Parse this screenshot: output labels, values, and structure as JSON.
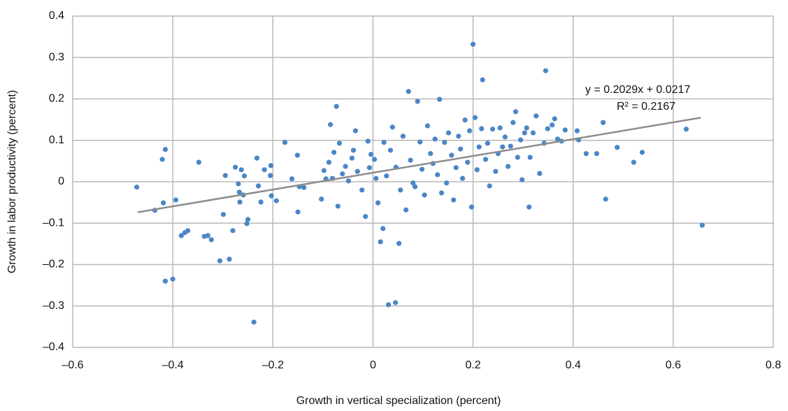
{
  "chart_data": {
    "type": "scatter",
    "xlabel": "Growth in vertical specialization (percent)",
    "ylabel": "Growth in labor productivity (percent)",
    "color": "#4a86c6",
    "grid": true,
    "xlim": [
      -0.6,
      0.8
    ],
    "ylim": [
      -0.4,
      0.4
    ],
    "xticks": [
      {
        "value": -0.6,
        "label": "–0.6"
      },
      {
        "value": -0.4,
        "label": "–0.4"
      },
      {
        "value": -0.2,
        "label": "–0.2"
      },
      0,
      0.2,
      0.4,
      0.6,
      0.8
    ],
    "yticks": [
      {
        "value": -0.4,
        "label": "–0.4"
      },
      {
        "value": -0.3,
        "label": "–0.3"
      },
      {
        "value": -0.2,
        "label": "–0.2"
      },
      {
        "value": -0.1,
        "label": "–0.1"
      },
      0,
      0.1,
      0.2,
      0.3,
      0.4
    ],
    "x": [
      -0.472,
      -0.436,
      -0.421,
      -0.415,
      -0.419,
      -0.415,
      -0.4,
      -0.394,
      -0.383,
      -0.376,
      -0.37,
      -0.348,
      -0.337,
      -0.33,
      -0.323,
      -0.306,
      -0.287,
      -0.299,
      -0.295,
      -0.28,
      -0.275,
      -0.269,
      -0.267,
      -0.266,
      -0.263,
      -0.257,
      -0.252,
      -0.25,
      -0.259,
      -0.232,
      -0.229,
      -0.224,
      -0.217,
      -0.205,
      -0.204,
      -0.203,
      -0.238,
      -0.193,
      -0.176,
      -0.162,
      -0.151,
      -0.147,
      -0.15,
      -0.138,
      -0.103,
      -0.098,
      -0.094,
      -0.088,
      -0.085,
      -0.081,
      -0.078,
      -0.073,
      -0.07,
      -0.067,
      -0.061,
      -0.055,
      -0.049,
      -0.042,
      -0.039,
      -0.035,
      -0.031,
      -0.022,
      -0.015,
      -0.01,
      -0.007,
      -0.004,
      0.003,
      0.006,
      0.01,
      0.015,
      0.02,
      0.022,
      0.027,
      0.031,
      0.045,
      0.035,
      0.039,
      0.046,
      0.052,
      0.055,
      0.06,
      0.066,
      0.071,
      0.075,
      0.08,
      0.084,
      0.089,
      0.094,
      0.098,
      0.103,
      0.109,
      0.115,
      0.12,
      0.124,
      0.129,
      0.133,
      0.137,
      0.143,
      0.147,
      0.151,
      0.157,
      0.161,
      0.166,
      0.171,
      0.175,
      0.179,
      0.184,
      0.189,
      0.193,
      0.197,
      0.2,
      0.204,
      0.208,
      0.212,
      0.217,
      0.219,
      0.225,
      0.229,
      0.233,
      0.239,
      0.245,
      0.25,
      0.254,
      0.259,
      0.264,
      0.27,
      0.275,
      0.28,
      0.285,
      0.289,
      0.295,
      0.298,
      0.303,
      0.307,
      0.314,
      0.32,
      0.326,
      0.333,
      0.342,
      0.349,
      0.358,
      0.363,
      0.369,
      0.377,
      0.384,
      0.345,
      0.411,
      0.426,
      0.447,
      0.488,
      0.465,
      0.538,
      0.521,
      0.626,
      0.658,
      0.46,
      0.408,
      0.312
    ],
    "values": [
      -0.013,
      -0.069,
      0.054,
      0.078,
      -0.051,
      -0.24,
      -0.235,
      -0.044,
      -0.13,
      -0.123,
      -0.118,
      0.047,
      -0.132,
      -0.13,
      -0.14,
      -0.191,
      -0.187,
      -0.079,
      0.015,
      -0.118,
      0.035,
      -0.005,
      -0.025,
      -0.049,
      0.029,
      0.014,
      -0.101,
      -0.091,
      -0.032,
      0.057,
      -0.01,
      -0.049,
      0.029,
      0.015,
      0.039,
      -0.034,
      -0.339,
      -0.046,
      0.095,
      0.007,
      0.064,
      -0.012,
      -0.073,
      -0.014,
      -0.042,
      0.027,
      0.007,
      0.047,
      0.138,
      0.008,
      0.071,
      0.182,
      -0.059,
      0.093,
      0.019,
      0.037,
      0.002,
      0.057,
      0.076,
      0.123,
      0.025,
      -0.02,
      -0.084,
      0.098,
      0.034,
      0.066,
      0.054,
      0.008,
      -0.051,
      -0.145,
      -0.113,
      0.095,
      0.014,
      -0.297,
      -0.292,
      0.076,
      0.132,
      0.035,
      -0.149,
      -0.02,
      0.11,
      -0.068,
      0.218,
      0.052,
      -0.003,
      -0.012,
      0.194,
      0.096,
      0.03,
      -0.032,
      0.135,
      0.068,
      0.044,
      0.103,
      0.017,
      0.199,
      -0.027,
      0.095,
      -0.003,
      0.118,
      0.064,
      -0.044,
      0.034,
      0.11,
      0.079,
      0.008,
      0.149,
      0.047,
      0.123,
      -0.061,
      0.332,
      0.155,
      0.029,
      0.084,
      0.128,
      0.246,
      0.054,
      0.093,
      -0.01,
      0.127,
      0.025,
      0.068,
      0.13,
      0.084,
      0.108,
      0.037,
      0.086,
      0.143,
      0.169,
      0.059,
      0.101,
      0.005,
      0.118,
      0.13,
      0.059,
      0.118,
      0.159,
      0.02,
      0.093,
      0.128,
      0.137,
      0.152,
      0.103,
      0.098,
      0.125,
      0.268,
      0.101,
      0.068,
      0.068,
      0.083,
      -0.042,
      0.071,
      0.047,
      0.127,
      -0.105,
      0.143,
      0.123,
      -0.061
    ],
    "trendline": {
      "slope": 0.2029,
      "intercept": 0.0217,
      "xlim": [
        -0.47,
        0.655
      ],
      "color": "#8c8c8c",
      "equation": "y = 0.2029x + 0.0217",
      "r2_label": "R² = 0.2167"
    }
  }
}
